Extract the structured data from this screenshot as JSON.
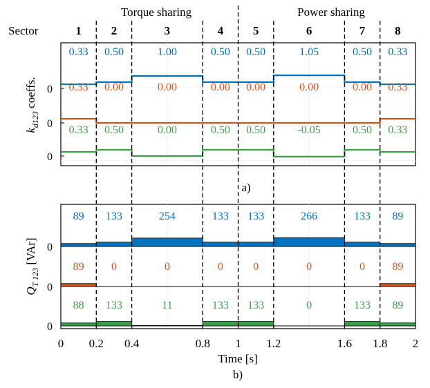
{
  "figure": {
    "header": {
      "left": "Torque sharing",
      "right": "Power sharing"
    },
    "sector_label": "Sector",
    "sectors": [
      "1",
      "2",
      "3",
      "4",
      "5",
      "6",
      "7",
      "8"
    ],
    "sector_bounds": [
      0,
      0.2,
      0.4,
      0.8,
      1.0,
      1.2,
      1.6,
      1.8,
      2.0
    ],
    "phase_split_time": 1.0,
    "panel_a_caption": "a)",
    "panel_b_caption": "b)"
  },
  "chart_data": [
    {
      "type": "line",
      "panel": "a",
      "ylabel": "k_{d123} coeffs.",
      "ylabel_main": "k",
      "ylabel_sub": "d123",
      "ylabel_rest": " coeffs.",
      "xlim": [
        0,
        2
      ],
      "grid": true,
      "colors": [
        "#0072BD",
        "#D95319",
        "#3E9E47"
      ],
      "zero_tick": "0",
      "series": [
        {
          "values": [
            0.33,
            0.5,
            1.0,
            0.5,
            0.5,
            1.05,
            0.5,
            0.33
          ],
          "labels": [
            "0.33",
            "0.50",
            "1.00",
            "0.50",
            "0.50",
            "1.05",
            "0.50",
            "0.33"
          ]
        },
        {
          "values": [
            0.33,
            0.0,
            0.0,
            0.0,
            0.0,
            0.0,
            0.0,
            0.33
          ],
          "labels": [
            "0.33",
            "0.00",
            "0.00",
            "0.00",
            "0.00",
            "0.00",
            "0.00",
            "0.33"
          ]
        },
        {
          "values": [
            0.33,
            0.5,
            0.0,
            0.5,
            0.5,
            -0.05,
            0.5,
            0.33
          ],
          "labels": [
            "0.33",
            "0.50",
            "0.00",
            "0.50",
            "0.50",
            "-0.05",
            "0.50",
            "0.33"
          ]
        }
      ]
    },
    {
      "type": "area",
      "panel": "b",
      "ylabel": "Q_{T 123} [VAr]",
      "ylabel_main": "Q",
      "ylabel_sub": "T 123",
      "ylabel_rest": " [VAr]",
      "xlabel": "Time [s]",
      "xlim": [
        0,
        2
      ],
      "xticks": [
        0,
        0.2,
        0.4,
        0.8,
        1,
        1.2,
        1.6,
        1.8,
        2
      ],
      "xtick_labels": [
        "0",
        "0.2",
        "0.4",
        "0.8",
        "1",
        "1.2",
        "1.6",
        "1.8",
        "2"
      ],
      "grid": true,
      "colors": [
        "#0072BD",
        "#D95319",
        "#3E9E47"
      ],
      "zero_tick": "0",
      "series": [
        {
          "values": [
            89,
            133,
            254,
            133,
            133,
            266,
            133,
            89
          ],
          "labels": [
            "89",
            "133",
            "254",
            "133",
            "133",
            "266",
            "133",
            "89"
          ]
        },
        {
          "values": [
            89,
            0,
            0,
            0,
            0,
            0,
            0,
            89
          ],
          "labels": [
            "89",
            "0",
            "0",
            "0",
            "0",
            "0",
            "0",
            "89"
          ]
        },
        {
          "values": [
            88,
            133,
            11,
            133,
            133,
            0,
            133,
            89
          ],
          "labels": [
            "88",
            "133",
            "11",
            "133",
            "133",
            "0",
            "133",
            "89"
          ]
        }
      ]
    }
  ]
}
